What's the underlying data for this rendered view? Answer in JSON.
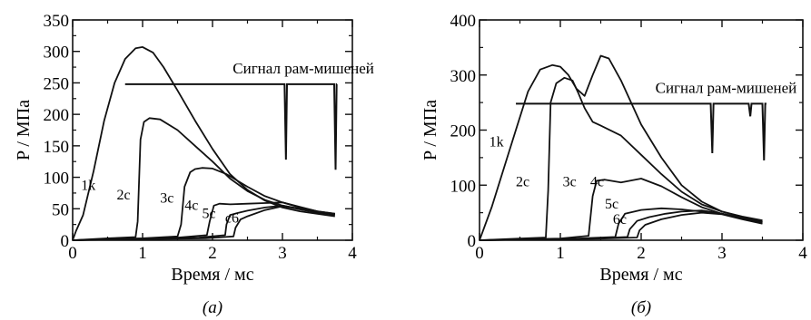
{
  "chart_data": [
    {
      "type": "line",
      "caption": "(а)",
      "xlabel": "Время / мс",
      "ylabel": "P / МПа",
      "xlim": [
        0,
        4
      ],
      "ylim": [
        0,
        350
      ],
      "xticks": [
        "0",
        "1",
        "2",
        "3",
        "4"
      ],
      "yticks": [
        "0",
        "50",
        "100",
        "150",
        "200",
        "250",
        "300",
        "350"
      ],
      "signal_label": "Сигнал рам-мишеней",
      "signal": {
        "level": 248,
        "x_start": 0.75,
        "x_end": 3.78,
        "dips": [
          [
            3.05,
            128
          ],
          [
            3.76,
            112
          ]
        ]
      },
      "series": [
        {
          "name": "1k",
          "x": [
            0.0,
            0.05,
            0.15,
            0.3,
            0.45,
            0.6,
            0.75,
            0.9,
            1.0,
            1.15,
            1.3,
            1.5,
            1.75,
            2.0,
            2.25,
            2.5,
            2.75,
            3.0,
            3.25,
            3.5,
            3.75
          ],
          "y": [
            0,
            15,
            40,
            110,
            190,
            250,
            288,
            305,
            307,
            298,
            275,
            238,
            190,
            145,
            105,
            80,
            63,
            52,
            46,
            42,
            38
          ]
        },
        {
          "name": "2c",
          "x": [
            0.0,
            0.5,
            0.9,
            0.93,
            0.97,
            1.02,
            1.1,
            1.25,
            1.5,
            1.75,
            2.0,
            2.25,
            2.5,
            2.75,
            3.0,
            3.25,
            3.5,
            3.75
          ],
          "y": [
            0,
            3,
            5,
            30,
            160,
            188,
            194,
            192,
            175,
            150,
            125,
            98,
            78,
            64,
            55,
            49,
            44,
            41
          ]
        },
        {
          "name": "3c",
          "x": [
            0.0,
            1.0,
            1.5,
            1.55,
            1.6,
            1.68,
            1.75,
            1.85,
            2.0,
            2.2,
            2.5,
            2.75,
            3.0,
            3.25,
            3.5,
            3.75
          ],
          "y": [
            0,
            3,
            6,
            25,
            85,
            108,
            113,
            115,
            114,
            105,
            85,
            70,
            60,
            52,
            46,
            42
          ]
        },
        {
          "name": "4c",
          "x": [
            0.0,
            1.5,
            1.92,
            1.96,
            2.02,
            2.1,
            2.25,
            2.5,
            2.75,
            3.0,
            3.25,
            3.5,
            3.75
          ],
          "y": [
            0,
            4,
            8,
            30,
            55,
            58,
            57,
            58,
            59,
            60,
            53,
            46,
            42
          ]
        },
        {
          "name": "5c",
          "x": [
            0.0,
            1.8,
            2.18,
            2.2,
            2.25,
            2.35,
            2.5,
            2.75,
            3.0,
            3.25,
            3.5,
            3.75
          ],
          "y": [
            0,
            4,
            8,
            25,
            40,
            43,
            47,
            52,
            55,
            50,
            45,
            41
          ]
        },
        {
          "name": "c6",
          "x": [
            0.0,
            1.9,
            2.3,
            2.33,
            2.4,
            2.5,
            2.75,
            3.0,
            3.25,
            3.5,
            3.75
          ],
          "y": [
            0,
            3,
            6,
            20,
            33,
            38,
            48,
            54,
            50,
            45,
            40
          ]
        }
      ]
    },
    {
      "type": "line",
      "caption": "(б)",
      "xlabel": "Время / мс",
      "ylabel": "P / МПа",
      "xlim": [
        0,
        4
      ],
      "ylim": [
        0,
        400
      ],
      "xticks": [
        "0",
        "1",
        "2",
        "3",
        "4"
      ],
      "yticks": [
        "0",
        "100",
        "200",
        "300",
        "400"
      ],
      "signal_label": "Сигнал рам-мишеней",
      "signal": {
        "level": 248,
        "x_start": 0.45,
        "x_end": 3.55,
        "dips": [
          [
            2.88,
            158
          ],
          [
            3.35,
            225
          ],
          [
            3.52,
            145
          ]
        ]
      },
      "series": [
        {
          "name": "1k",
          "x": [
            0.0,
            0.05,
            0.15,
            0.3,
            0.45,
            0.6,
            0.75,
            0.9,
            1.0,
            1.1,
            1.2,
            1.3,
            1.4,
            1.5,
            1.6,
            1.75,
            2.0,
            2.25,
            2.5,
            2.75,
            3.0,
            3.25,
            3.5
          ],
          "y": [
            0,
            20,
            60,
            130,
            200,
            270,
            310,
            318,
            315,
            300,
            275,
            262,
            300,
            335,
            330,
            290,
            210,
            150,
            100,
            70,
            52,
            42,
            35
          ]
        },
        {
          "name": "2c",
          "x": [
            0.0,
            0.5,
            0.82,
            0.85,
            0.88,
            0.95,
            1.05,
            1.15,
            1.22,
            1.3,
            1.4,
            1.5,
            1.75,
            2.0,
            2.25,
            2.5,
            2.75,
            3.0,
            3.25,
            3.5
          ],
          "y": [
            0,
            3,
            5,
            90,
            250,
            285,
            295,
            290,
            268,
            240,
            215,
            208,
            190,
            155,
            120,
            88,
            65,
            52,
            43,
            36
          ]
        },
        {
          "name": "3c",
          "x": [
            0.0,
            1.0,
            1.35,
            1.4,
            1.45,
            1.55,
            1.75,
            2.0,
            2.25,
            2.5,
            2.75,
            3.0,
            3.25,
            3.5
          ],
          "y": [
            0,
            3,
            8,
            80,
            108,
            110,
            105,
            112,
            98,
            78,
            60,
            48,
            40,
            33
          ]
        },
        {
          "name": "4c",
          "x": [
            0.0,
            1.2,
            1.68,
            1.72,
            1.8,
            2.0,
            2.25,
            2.5,
            2.75,
            3.0,
            3.25,
            3.5
          ],
          "y": [
            0,
            3,
            6,
            30,
            48,
            55,
            58,
            56,
            52,
            48,
            40,
            33
          ]
        },
        {
          "name": "5c",
          "x": [
            0.0,
            1.4,
            1.83,
            1.86,
            1.95,
            2.1,
            2.3,
            2.5,
            2.75,
            3.0,
            3.25,
            3.5
          ],
          "y": [
            0,
            3,
            6,
            20,
            35,
            42,
            48,
            52,
            54,
            48,
            40,
            32
          ]
        },
        {
          "name": "6c",
          "x": [
            0.0,
            1.5,
            1.95,
            1.98,
            2.05,
            2.25,
            2.5,
            2.75,
            3.0,
            3.25,
            3.5
          ],
          "y": [
            0,
            3,
            5,
            18,
            28,
            38,
            46,
            50,
            47,
            38,
            30
          ]
        }
      ]
    }
  ]
}
